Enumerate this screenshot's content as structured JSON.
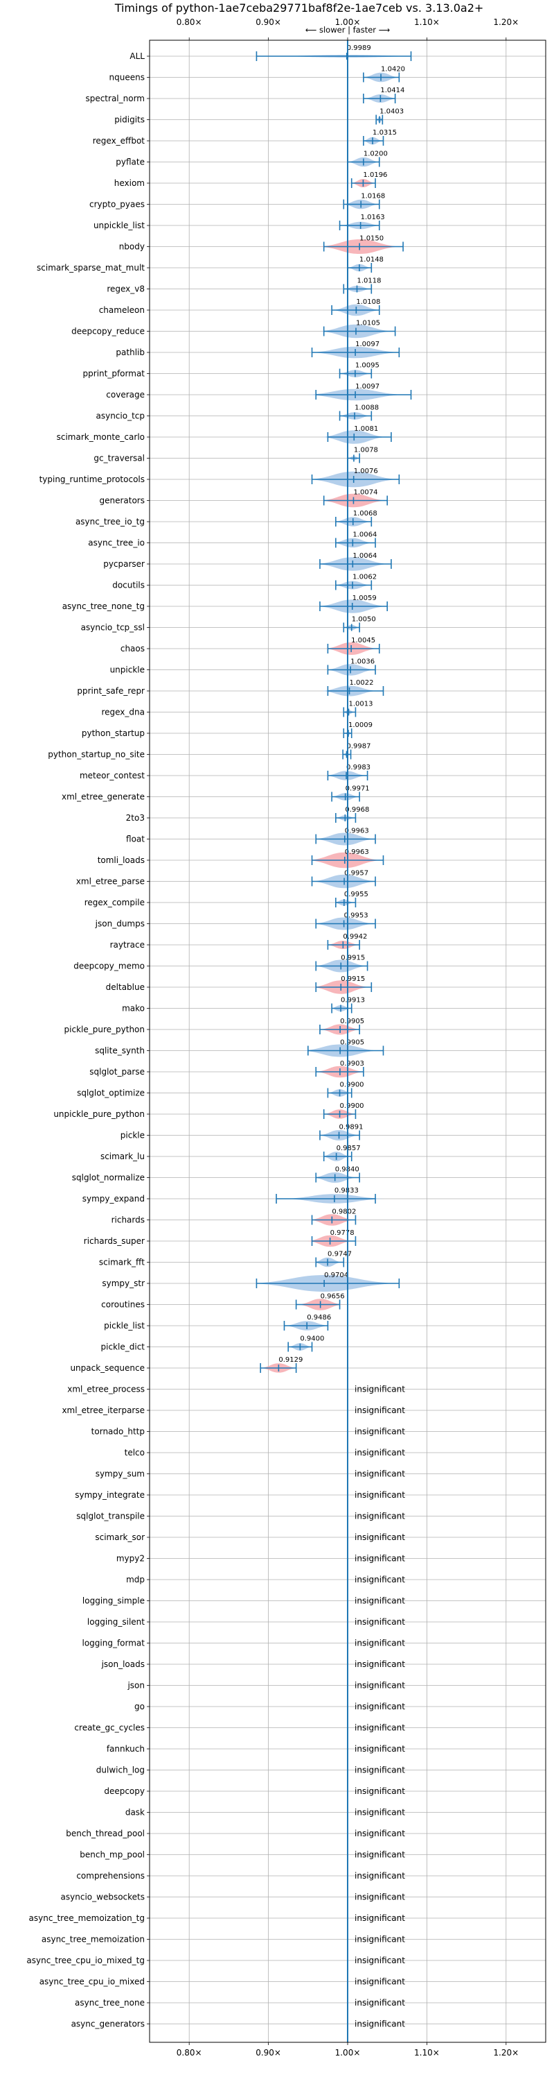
{
  "chart_data": {
    "type": "violin",
    "title": "Timings of python-1ae7ceba29771baf8f2e-1ae7ceb vs. 3.13.0a2+",
    "direction_label": "⟵ slower | faster ⟶",
    "xlim": [
      0.75,
      1.25
    ],
    "xticks": [
      {
        "value": 0.8,
        "label": "0.80×"
      },
      {
        "value": 0.9,
        "label": "0.90×"
      },
      {
        "value": 1.0,
        "label": "1.00×"
      },
      {
        "value": 1.1,
        "label": "1.10×"
      },
      {
        "value": 1.2,
        "label": "1.20×"
      }
    ],
    "grid": true,
    "colors": {
      "faster": "#a7c7e7",
      "slower": "#f6a9ae",
      "line": "#1f77b4",
      "grid": "#b0b0b0"
    },
    "insignificant_label": "insignificant",
    "benchmarks": [
      {
        "name": "ALL",
        "mean": 0.9989,
        "min": 0.885,
        "max": 1.08,
        "width": 0.006,
        "color": "faster",
        "label": "0.9989"
      },
      {
        "name": "nqueens",
        "mean": 1.042,
        "min": 1.02,
        "max": 1.065,
        "width": 0.45,
        "color": "faster",
        "label": "1.0420"
      },
      {
        "name": "spectral_norm",
        "mean": 1.0414,
        "min": 1.02,
        "max": 1.06,
        "width": 0.4,
        "color": "faster",
        "label": "1.0414"
      },
      {
        "name": "pidigits",
        "mean": 1.0403,
        "min": 1.036,
        "max": 1.044,
        "width": 0.3,
        "color": "faster",
        "label": "1.0403"
      },
      {
        "name": "regex_effbot",
        "mean": 1.0315,
        "min": 1.02,
        "max": 1.045,
        "width": 0.35,
        "color": "faster",
        "label": "1.0315"
      },
      {
        "name": "pyflate",
        "mean": 1.02,
        "min": 1.0,
        "max": 1.04,
        "width": 0.45,
        "color": "faster",
        "label": "1.0200"
      },
      {
        "name": "hexiom",
        "mean": 1.0196,
        "min": 1.005,
        "max": 1.035,
        "width": 0.4,
        "color": "slower",
        "label": "1.0196"
      },
      {
        "name": "crypto_pyaes",
        "mean": 1.0168,
        "min": 0.995,
        "max": 1.04,
        "width": 0.45,
        "color": "faster",
        "label": "1.0168"
      },
      {
        "name": "unpickle_list",
        "mean": 1.0163,
        "min": 0.99,
        "max": 1.04,
        "width": 0.35,
        "color": "faster",
        "label": "1.0163"
      },
      {
        "name": "nbody",
        "mean": 1.015,
        "min": 0.97,
        "max": 1.07,
        "width": 0.7,
        "color": "slower",
        "label": "1.0150"
      },
      {
        "name": "scimark_sparse_mat_mult",
        "mean": 1.0148,
        "min": 1.0,
        "max": 1.03,
        "width": 0.35,
        "color": "faster",
        "label": "1.0148"
      },
      {
        "name": "regex_v8",
        "mean": 1.0118,
        "min": 0.995,
        "max": 1.03,
        "width": 0.3,
        "color": "faster",
        "label": "1.0118"
      },
      {
        "name": "chameleon",
        "mean": 1.0108,
        "min": 0.98,
        "max": 1.04,
        "width": 0.55,
        "color": "faster",
        "label": "1.0108"
      },
      {
        "name": "deepcopy_reduce",
        "mean": 1.0105,
        "min": 0.97,
        "max": 1.06,
        "width": 0.65,
        "color": "faster",
        "label": "1.0105"
      },
      {
        "name": "pathlib",
        "mean": 1.0097,
        "min": 0.955,
        "max": 1.065,
        "width": 0.55,
        "color": "faster",
        "label": "1.0097"
      },
      {
        "name": "pprint_pformat",
        "mean": 1.0095,
        "min": 0.99,
        "max": 1.03,
        "width": 0.35,
        "color": "faster",
        "label": "1.0095"
      },
      {
        "name": "coverage",
        "mean": 1.0097,
        "min": 0.96,
        "max": 1.08,
        "width": 0.55,
        "color": "faster",
        "label": "1.0097"
      },
      {
        "name": "asyncio_tcp",
        "mean": 1.0088,
        "min": 0.99,
        "max": 1.03,
        "width": 0.35,
        "color": "faster",
        "label": "1.0088"
      },
      {
        "name": "scimark_monte_carlo",
        "mean": 1.0081,
        "min": 0.975,
        "max": 1.055,
        "width": 0.65,
        "color": "faster",
        "label": "1.0081"
      },
      {
        "name": "gc_traversal",
        "mean": 1.0078,
        "min": 1.0,
        "max": 1.015,
        "width": 0.2,
        "color": "faster",
        "label": "1.0078"
      },
      {
        "name": "typing_runtime_protocols",
        "mean": 1.0076,
        "min": 0.955,
        "max": 1.065,
        "width": 0.75,
        "color": "faster",
        "label": "1.0076"
      },
      {
        "name": "generators",
        "mean": 1.0074,
        "min": 0.97,
        "max": 1.05,
        "width": 0.65,
        "color": "slower",
        "label": "1.0074"
      },
      {
        "name": "async_tree_io_tg",
        "mean": 1.0068,
        "min": 0.985,
        "max": 1.03,
        "width": 0.45,
        "color": "faster",
        "label": "1.0068"
      },
      {
        "name": "async_tree_io",
        "mean": 1.0064,
        "min": 0.985,
        "max": 1.035,
        "width": 0.45,
        "color": "faster",
        "label": "1.0064"
      },
      {
        "name": "pycparser",
        "mean": 1.0064,
        "min": 0.965,
        "max": 1.055,
        "width": 0.65,
        "color": "faster",
        "label": "1.0064"
      },
      {
        "name": "docutils",
        "mean": 1.0062,
        "min": 0.985,
        "max": 1.03,
        "width": 0.4,
        "color": "faster",
        "label": "1.0062"
      },
      {
        "name": "async_tree_none_tg",
        "mean": 1.0059,
        "min": 0.965,
        "max": 1.05,
        "width": 0.65,
        "color": "faster",
        "label": "1.0059"
      },
      {
        "name": "asyncio_tcp_ssl",
        "mean": 1.005,
        "min": 0.995,
        "max": 1.015,
        "width": 0.25,
        "color": "faster",
        "label": "1.0050"
      },
      {
        "name": "chaos",
        "mean": 1.0045,
        "min": 0.975,
        "max": 1.04,
        "width": 0.6,
        "color": "slower",
        "label": "1.0045"
      },
      {
        "name": "unpickle",
        "mean": 1.0036,
        "min": 0.975,
        "max": 1.035,
        "width": 0.55,
        "color": "faster",
        "label": "1.0036"
      },
      {
        "name": "pprint_safe_repr",
        "mean": 1.0022,
        "min": 0.975,
        "max": 1.045,
        "width": 0.5,
        "color": "faster",
        "label": "1.0022"
      },
      {
        "name": "regex_dna",
        "mean": 1.0013,
        "min": 0.995,
        "max": 1.01,
        "width": 0.2,
        "color": "faster",
        "label": "1.0013"
      },
      {
        "name": "python_startup",
        "mean": 1.0009,
        "min": 0.995,
        "max": 1.005,
        "width": 0.15,
        "color": "faster",
        "label": "1.0009"
      },
      {
        "name": "python_startup_no_site",
        "mean": 0.9987,
        "min": 0.994,
        "max": 1.004,
        "width": 0.15,
        "color": "faster",
        "label": "0.9987"
      },
      {
        "name": "meteor_contest",
        "mean": 0.9983,
        "min": 0.975,
        "max": 1.025,
        "width": 0.45,
        "color": "faster",
        "label": "0.9983"
      },
      {
        "name": "xml_etree_generate",
        "mean": 0.9971,
        "min": 0.98,
        "max": 1.015,
        "width": 0.35,
        "color": "faster",
        "label": "0.9971"
      },
      {
        "name": "2to3",
        "mean": 0.9968,
        "min": 0.985,
        "max": 1.01,
        "width": 0.25,
        "color": "faster",
        "label": "0.9968"
      },
      {
        "name": "float",
        "mean": 0.9963,
        "min": 0.96,
        "max": 1.035,
        "width": 0.6,
        "color": "faster",
        "label": "0.9963"
      },
      {
        "name": "tomli_loads",
        "mean": 0.9963,
        "min": 0.955,
        "max": 1.045,
        "width": 0.75,
        "color": "slower",
        "label": "0.9963"
      },
      {
        "name": "xml_etree_parse",
        "mean": 0.9957,
        "min": 0.955,
        "max": 1.035,
        "width": 0.65,
        "color": "faster",
        "label": "0.9957"
      },
      {
        "name": "regex_compile",
        "mean": 0.9955,
        "min": 0.985,
        "max": 1.01,
        "width": 0.3,
        "color": "faster",
        "label": "0.9955"
      },
      {
        "name": "json_dumps",
        "mean": 0.9953,
        "min": 0.96,
        "max": 1.035,
        "width": 0.6,
        "color": "faster",
        "label": "0.9953"
      },
      {
        "name": "raytrace",
        "mean": 0.9942,
        "min": 0.975,
        "max": 1.015,
        "width": 0.4,
        "color": "slower",
        "label": "0.9942"
      },
      {
        "name": "deepcopy_memo",
        "mean": 0.9915,
        "min": 0.96,
        "max": 1.025,
        "width": 0.6,
        "color": "faster",
        "label": "0.9915"
      },
      {
        "name": "deltablue",
        "mean": 0.9915,
        "min": 0.96,
        "max": 1.03,
        "width": 0.65,
        "color": "slower",
        "label": "0.9915"
      },
      {
        "name": "mako",
        "mean": 0.9913,
        "min": 0.98,
        "max": 1.005,
        "width": 0.3,
        "color": "faster",
        "label": "0.9913"
      },
      {
        "name": "pickle_pure_python",
        "mean": 0.9905,
        "min": 0.965,
        "max": 1.015,
        "width": 0.5,
        "color": "slower",
        "label": "0.9905"
      },
      {
        "name": "sqlite_synth",
        "mean": 0.9905,
        "min": 0.95,
        "max": 1.045,
        "width": 0.6,
        "color": "faster",
        "label": "0.9905"
      },
      {
        "name": "sqlglot_parse",
        "mean": 0.9903,
        "min": 0.96,
        "max": 1.02,
        "width": 0.55,
        "color": "slower",
        "label": "0.9903"
      },
      {
        "name": "sqlglot_optimize",
        "mean": 0.99,
        "min": 0.975,
        "max": 1.005,
        "width": 0.35,
        "color": "faster",
        "label": "0.9900"
      },
      {
        "name": "unpickle_pure_python",
        "mean": 0.99,
        "min": 0.97,
        "max": 1.01,
        "width": 0.45,
        "color": "slower",
        "label": "0.9900"
      },
      {
        "name": "pickle",
        "mean": 0.9891,
        "min": 0.965,
        "max": 1.015,
        "width": 0.5,
        "color": "faster",
        "label": "0.9891"
      },
      {
        "name": "scimark_lu",
        "mean": 0.9857,
        "min": 0.97,
        "max": 1.005,
        "width": 0.45,
        "color": "faster",
        "label": "0.9857"
      },
      {
        "name": "sqlglot_normalize",
        "mean": 0.984,
        "min": 0.96,
        "max": 1.015,
        "width": 0.5,
        "color": "faster",
        "label": "0.9840"
      },
      {
        "name": "sympy_expand",
        "mean": 0.9833,
        "min": 0.91,
        "max": 1.035,
        "width": 0.45,
        "color": "faster",
        "label": "0.9833"
      },
      {
        "name": "richards",
        "mean": 0.9802,
        "min": 0.955,
        "max": 1.01,
        "width": 0.55,
        "color": "slower",
        "label": "0.9802"
      },
      {
        "name": "richards_super",
        "mean": 0.9778,
        "min": 0.955,
        "max": 1.01,
        "width": 0.55,
        "color": "slower",
        "label": "0.9778"
      },
      {
        "name": "scimark_fft",
        "mean": 0.9747,
        "min": 0.96,
        "max": 0.995,
        "width": 0.45,
        "color": "faster",
        "label": "0.9747"
      },
      {
        "name": "sympy_str",
        "mean": 0.9704,
        "min": 0.885,
        "max": 1.065,
        "width": 0.8,
        "color": "faster",
        "label": "0.9704"
      },
      {
        "name": "coroutines",
        "mean": 0.9656,
        "min": 0.935,
        "max": 0.99,
        "width": 0.55,
        "color": "slower",
        "label": "0.9656"
      },
      {
        "name": "pickle_list",
        "mean": 0.9486,
        "min": 0.92,
        "max": 0.975,
        "width": 0.45,
        "color": "faster",
        "label": "0.9486"
      },
      {
        "name": "pickle_dict",
        "mean": 0.94,
        "min": 0.925,
        "max": 0.955,
        "width": 0.35,
        "color": "faster",
        "label": "0.9400"
      },
      {
        "name": "unpack_sequence",
        "mean": 0.9129,
        "min": 0.89,
        "max": 0.935,
        "width": 0.45,
        "color": "slower",
        "label": "0.9129"
      },
      {
        "name": "xml_etree_process",
        "insignificant": true
      },
      {
        "name": "xml_etree_iterparse",
        "insignificant": true
      },
      {
        "name": "tornado_http",
        "insignificant": true
      },
      {
        "name": "telco",
        "insignificant": true
      },
      {
        "name": "sympy_sum",
        "insignificant": true
      },
      {
        "name": "sympy_integrate",
        "insignificant": true
      },
      {
        "name": "sqlglot_transpile",
        "insignificant": true
      },
      {
        "name": "scimark_sor",
        "insignificant": true
      },
      {
        "name": "mypy2",
        "insignificant": true
      },
      {
        "name": "mdp",
        "insignificant": true
      },
      {
        "name": "logging_simple",
        "insignificant": true
      },
      {
        "name": "logging_silent",
        "insignificant": true
      },
      {
        "name": "logging_format",
        "insignificant": true
      },
      {
        "name": "json_loads",
        "insignificant": true
      },
      {
        "name": "json",
        "insignificant": true
      },
      {
        "name": "go",
        "insignificant": true
      },
      {
        "name": "create_gc_cycles",
        "insignificant": true
      },
      {
        "name": "fannkuch",
        "insignificant": true
      },
      {
        "name": "dulwich_log",
        "insignificant": true
      },
      {
        "name": "deepcopy",
        "insignificant": true
      },
      {
        "name": "dask",
        "insignificant": true
      },
      {
        "name": "bench_thread_pool",
        "insignificant": true
      },
      {
        "name": "bench_mp_pool",
        "insignificant": true
      },
      {
        "name": "comprehensions",
        "insignificant": true
      },
      {
        "name": "asyncio_websockets",
        "insignificant": true
      },
      {
        "name": "async_tree_memoization_tg",
        "insignificant": true
      },
      {
        "name": "async_tree_memoization",
        "insignificant": true
      },
      {
        "name": "async_tree_cpu_io_mixed_tg",
        "insignificant": true
      },
      {
        "name": "async_tree_cpu_io_mixed",
        "insignificant": true
      },
      {
        "name": "async_tree_none",
        "insignificant": true
      },
      {
        "name": "async_generators",
        "insignificant": true
      }
    ]
  }
}
